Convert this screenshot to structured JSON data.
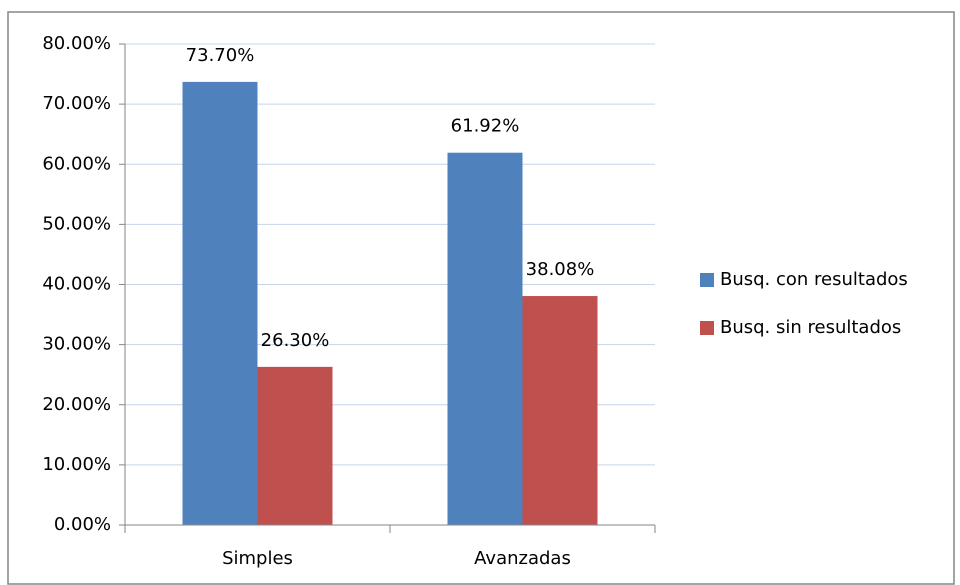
{
  "chart_data": {
    "type": "bar",
    "categories": [
      "Simples",
      "Avanzadas"
    ],
    "series": [
      {
        "name": "Busq. con resultados",
        "color": "#4f81bd",
        "values": [
          73.7,
          61.92
        ],
        "value_labels": [
          "73.70%",
          "61.92%"
        ]
      },
      {
        "name": "Busq. sin resultados",
        "color": "#c0504d",
        "values": [
          26.3,
          38.08
        ],
        "value_labels": [
          "26.30%",
          "38.08%"
        ]
      }
    ],
    "ylim": [
      0,
      80
    ],
    "yticks": [
      {
        "value": 0,
        "label": "0.00%"
      },
      {
        "value": 10,
        "label": "10.00%"
      },
      {
        "value": 20,
        "label": "20.00%"
      },
      {
        "value": 30,
        "label": "30.00%"
      },
      {
        "value": 40,
        "label": "40.00%"
      },
      {
        "value": 50,
        "label": "50.00%"
      },
      {
        "value": 60,
        "label": "60.00%"
      },
      {
        "value": 70,
        "label": "70.00%"
      },
      {
        "value": 80,
        "label": "80.00%"
      }
    ],
    "grid": true,
    "legend": "right"
  }
}
